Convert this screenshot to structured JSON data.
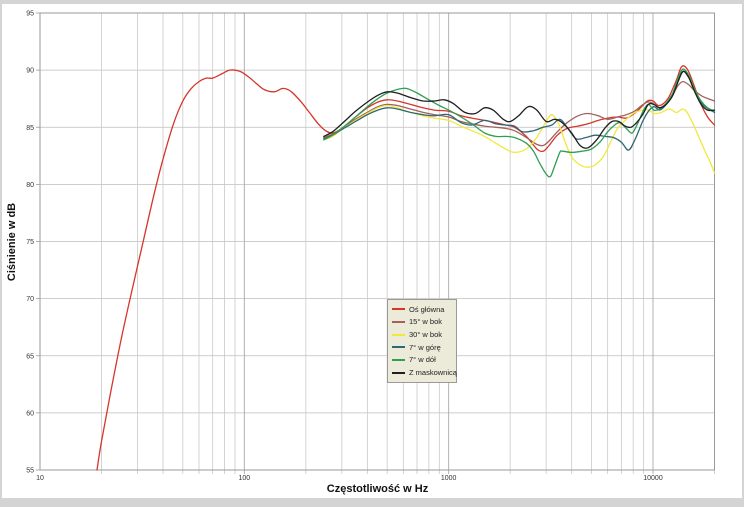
{
  "page": {
    "outer_background": "#d4d4d4",
    "chart_background": "#ffffff"
  },
  "chart_data": {
    "type": "line",
    "title": "",
    "xlabel": "Częstotliwość w Hz",
    "ylabel": "Ciśnienie w dB",
    "x_scale": "log",
    "xlim": [
      10,
      20000
    ],
    "ylim": [
      55,
      95
    ],
    "y_ticks": [
      55,
      60,
      65,
      70,
      75,
      80,
      85,
      90,
      95
    ],
    "x_major_ticks": [
      10,
      100,
      1000,
      10000
    ],
    "x_tick_labels": [
      "10",
      "100",
      "1000",
      "10000"
    ],
    "grid": true,
    "legend_position": "center",
    "colors": {
      "frame": "#9a9a9a",
      "grid_h": "#bdbdbd",
      "grid_v_minor": "#c9c9c9",
      "grid_v_major": "#aaaaaa",
      "tick_text": "#333333"
    },
    "series": [
      {
        "name": "Oś główna",
        "color": "#d6352b",
        "points": [
          [
            19,
            55
          ],
          [
            20,
            57.5
          ],
          [
            22,
            61.5
          ],
          [
            25,
            66.5
          ],
          [
            28,
            70.5
          ],
          [
            32,
            75
          ],
          [
            36,
            79
          ],
          [
            40,
            82.2
          ],
          [
            45,
            85.3
          ],
          [
            50,
            87.3
          ],
          [
            55,
            88.4
          ],
          [
            60,
            89.0
          ],
          [
            65,
            89.3
          ],
          [
            70,
            89.3
          ],
          [
            78,
            89.7
          ],
          [
            85,
            90.0
          ],
          [
            95,
            89.9
          ],
          [
            105,
            89.4
          ],
          [
            115,
            88.8
          ],
          [
            125,
            88.3
          ],
          [
            140,
            88.1
          ],
          [
            155,
            88.4
          ],
          [
            170,
            88.1
          ],
          [
            190,
            87.2
          ],
          [
            210,
            86.2
          ],
          [
            230,
            85.3
          ],
          [
            250,
            84.7
          ],
          [
            270,
            84.5
          ],
          [
            300,
            84.9
          ],
          [
            350,
            85.9
          ],
          [
            400,
            86.7
          ],
          [
            450,
            87.2
          ],
          [
            500,
            87.4
          ],
          [
            560,
            87.3
          ],
          [
            650,
            87.0
          ],
          [
            750,
            86.7
          ],
          [
            850,
            86.5
          ],
          [
            1000,
            86.4
          ],
          [
            1150,
            86.0
          ],
          [
            1300,
            85.8
          ],
          [
            1500,
            85.6
          ],
          [
            1700,
            85.4
          ],
          [
            1900,
            85.2
          ],
          [
            2100,
            85.0
          ],
          [
            2400,
            84.2
          ],
          [
            2700,
            83.1
          ],
          [
            2900,
            82.9
          ],
          [
            3100,
            83.4
          ],
          [
            3400,
            84.3
          ],
          [
            3800,
            84.9
          ],
          [
            4300,
            85.1
          ],
          [
            4800,
            85.3
          ],
          [
            5400,
            85.6
          ],
          [
            6000,
            85.8
          ],
          [
            6700,
            85.9
          ],
          [
            7400,
            85.8
          ],
          [
            8100,
            86.2
          ],
          [
            8800,
            86.8
          ],
          [
            9400,
            87.3
          ],
          [
            10000,
            87.3
          ],
          [
            10600,
            86.9
          ],
          [
            11300,
            87.1
          ],
          [
            12000,
            87.7
          ],
          [
            13000,
            89.1
          ],
          [
            13800,
            90.3
          ],
          [
            14700,
            90.1
          ],
          [
            15700,
            88.9
          ],
          [
            17000,
            87.2
          ],
          [
            18500,
            85.9
          ],
          [
            20000,
            85.2
          ]
        ]
      },
      {
        "name": "15° w bok",
        "color": "#a2615b",
        "points": [
          [
            245,
            84.1
          ],
          [
            270,
            84.4
          ],
          [
            300,
            84.9
          ],
          [
            350,
            85.7
          ],
          [
            400,
            86.3
          ],
          [
            450,
            86.8
          ],
          [
            500,
            87.0
          ],
          [
            560,
            86.9
          ],
          [
            650,
            86.6
          ],
          [
            750,
            86.3
          ],
          [
            850,
            86.1
          ],
          [
            1000,
            85.9
          ],
          [
            1150,
            85.5
          ],
          [
            1300,
            85.3
          ],
          [
            1500,
            85.1
          ],
          [
            1700,
            85.0
          ],
          [
            1900,
            84.9
          ],
          [
            2100,
            84.7
          ],
          [
            2400,
            84.1
          ],
          [
            2700,
            83.5
          ],
          [
            2900,
            83.4
          ],
          [
            3100,
            83.8
          ],
          [
            3400,
            84.6
          ],
          [
            3800,
            85.4
          ],
          [
            4300,
            86.0
          ],
          [
            4800,
            86.2
          ],
          [
            5400,
            86.0
          ],
          [
            6000,
            85.7
          ],
          [
            6700,
            85.9
          ],
          [
            7400,
            86.1
          ],
          [
            8100,
            86.4
          ],
          [
            8800,
            86.9
          ],
          [
            9400,
            87.2
          ],
          [
            10000,
            87.1
          ],
          [
            10700,
            86.7
          ],
          [
            11500,
            87.0
          ],
          [
            12300,
            87.6
          ],
          [
            13200,
            88.6
          ],
          [
            14000,
            89.0
          ],
          [
            15000,
            88.7
          ],
          [
            16000,
            88.2
          ],
          [
            17500,
            87.7
          ],
          [
            20000,
            87.3
          ]
        ]
      },
      {
        "name": "30° w bok",
        "color": "#f0e93c",
        "points": [
          [
            245,
            83.9
          ],
          [
            270,
            84.2
          ],
          [
            300,
            84.8
          ],
          [
            350,
            85.6
          ],
          [
            400,
            86.2
          ],
          [
            450,
            86.7
          ],
          [
            500,
            86.9
          ],
          [
            560,
            86.7
          ],
          [
            650,
            86.3
          ],
          [
            750,
            86.0
          ],
          [
            850,
            85.8
          ],
          [
            1000,
            85.6
          ],
          [
            1150,
            85.1
          ],
          [
            1300,
            84.7
          ],
          [
            1500,
            84.2
          ],
          [
            1700,
            83.6
          ],
          [
            1900,
            83.1
          ],
          [
            2100,
            82.8
          ],
          [
            2400,
            83.1
          ],
          [
            2700,
            84.1
          ],
          [
            3000,
            85.5
          ],
          [
            3200,
            86.1
          ],
          [
            3450,
            85.3
          ],
          [
            3700,
            83.8
          ],
          [
            4000,
            82.4
          ],
          [
            4400,
            81.7
          ],
          [
            4800,
            81.5
          ],
          [
            5200,
            81.7
          ],
          [
            5700,
            82.4
          ],
          [
            6200,
            83.7
          ],
          [
            6700,
            84.9
          ],
          [
            7300,
            85.6
          ],
          [
            8000,
            86.2
          ],
          [
            8800,
            86.5
          ],
          [
            9500,
            86.5
          ],
          [
            10200,
            86.2
          ],
          [
            11000,
            86.3
          ],
          [
            12000,
            86.6
          ],
          [
            13000,
            86.3
          ],
          [
            14000,
            86.6
          ],
          [
            14800,
            86.2
          ],
          [
            15800,
            85.2
          ],
          [
            17000,
            83.9
          ],
          [
            18200,
            82.7
          ],
          [
            19200,
            81.8
          ],
          [
            20000,
            81.0
          ]
        ]
      },
      {
        "name": "7° w górę",
        "color": "#2e6877",
        "points": [
          [
            245,
            84.0
          ],
          [
            270,
            84.3
          ],
          [
            300,
            84.8
          ],
          [
            350,
            85.5
          ],
          [
            400,
            86.1
          ],
          [
            450,
            86.5
          ],
          [
            500,
            86.7
          ],
          [
            560,
            86.6
          ],
          [
            650,
            86.3
          ],
          [
            750,
            86.1
          ],
          [
            850,
            86.0
          ],
          [
            1000,
            86.1
          ],
          [
            1150,
            85.4
          ],
          [
            1300,
            85.2
          ],
          [
            1500,
            85.6
          ],
          [
            1700,
            85.3
          ],
          [
            1900,
            85.2
          ],
          [
            2100,
            85.1
          ],
          [
            2300,
            84.6
          ],
          [
            2600,
            84.7
          ],
          [
            2900,
            85.0
          ],
          [
            3200,
            85.2
          ],
          [
            3500,
            85.7
          ],
          [
            3800,
            85.0
          ],
          [
            4200,
            84.0
          ],
          [
            4700,
            84.1
          ],
          [
            5200,
            84.3
          ],
          [
            5800,
            84.2
          ],
          [
            6400,
            84.1
          ],
          [
            7000,
            83.7
          ],
          [
            7600,
            83.0
          ],
          [
            8200,
            84.0
          ],
          [
            8900,
            85.5
          ],
          [
            9500,
            86.4
          ],
          [
            10100,
            86.8
          ],
          [
            10800,
            86.5
          ],
          [
            11600,
            87.0
          ],
          [
            12500,
            87.9
          ],
          [
            13400,
            89.3
          ],
          [
            14100,
            89.9
          ],
          [
            15000,
            89.4
          ],
          [
            16000,
            88.2
          ],
          [
            17500,
            87.0
          ],
          [
            20000,
            86.3
          ]
        ]
      },
      {
        "name": "7° w dół",
        "color": "#2f9e53",
        "points": [
          [
            245,
            83.9
          ],
          [
            270,
            84.3
          ],
          [
            300,
            84.9
          ],
          [
            350,
            85.9
          ],
          [
            400,
            86.8
          ],
          [
            450,
            87.5
          ],
          [
            500,
            88.0
          ],
          [
            560,
            88.3
          ],
          [
            620,
            88.4
          ],
          [
            700,
            88.0
          ],
          [
            800,
            87.4
          ],
          [
            900,
            86.9
          ],
          [
            1000,
            86.5
          ],
          [
            1150,
            85.9
          ],
          [
            1300,
            85.3
          ],
          [
            1500,
            84.5
          ],
          [
            1700,
            84.2
          ],
          [
            1900,
            84.2
          ],
          [
            2100,
            84.1
          ],
          [
            2400,
            83.6
          ],
          [
            2600,
            82.9
          ],
          [
            2800,
            81.8
          ],
          [
            3000,
            80.9
          ],
          [
            3150,
            80.7
          ],
          [
            3300,
            81.6
          ],
          [
            3500,
            82.8
          ],
          [
            3600,
            82.9
          ],
          [
            4000,
            82.8
          ],
          [
            4500,
            82.9
          ],
          [
            5000,
            83.1
          ],
          [
            5500,
            83.7
          ],
          [
            6000,
            84.6
          ],
          [
            6500,
            85.2
          ],
          [
            6900,
            85.4
          ],
          [
            7400,
            84.9
          ],
          [
            7900,
            84.5
          ],
          [
            8400,
            85.3
          ],
          [
            9000,
            86.5
          ],
          [
            9500,
            87.0
          ],
          [
            10100,
            86.5
          ],
          [
            10800,
            86.6
          ],
          [
            11600,
            87.1
          ],
          [
            12500,
            88.0
          ],
          [
            13400,
            89.5
          ],
          [
            14100,
            90.1
          ],
          [
            15000,
            89.5
          ],
          [
            16000,
            88.3
          ],
          [
            17200,
            87.3
          ],
          [
            18500,
            86.7
          ],
          [
            20000,
            86.4
          ]
        ]
      },
      {
        "name": "Z maskownicą",
        "color": "#1f1f1f",
        "points": [
          [
            245,
            84.2
          ],
          [
            270,
            84.6
          ],
          [
            300,
            85.3
          ],
          [
            350,
            86.4
          ],
          [
            400,
            87.2
          ],
          [
            450,
            87.8
          ],
          [
            500,
            88.1
          ],
          [
            560,
            88.0
          ],
          [
            650,
            87.6
          ],
          [
            750,
            87.3
          ],
          [
            850,
            87.3
          ],
          [
            950,
            87.4
          ],
          [
            1050,
            87.1
          ],
          [
            1200,
            86.3
          ],
          [
            1350,
            86.2
          ],
          [
            1500,
            86.7
          ],
          [
            1650,
            86.5
          ],
          [
            1850,
            85.7
          ],
          [
            2000,
            85.5
          ],
          [
            2200,
            86.0
          ],
          [
            2450,
            86.8
          ],
          [
            2700,
            86.5
          ],
          [
            3000,
            85.5
          ],
          [
            3300,
            85.7
          ],
          [
            3600,
            85.4
          ],
          [
            4000,
            84.5
          ],
          [
            4400,
            83.4
          ],
          [
            4800,
            83.2
          ],
          [
            5300,
            83.9
          ],
          [
            5800,
            84.9
          ],
          [
            6300,
            85.5
          ],
          [
            6800,
            85.5
          ],
          [
            7300,
            85.1
          ],
          [
            7800,
            85.0
          ],
          [
            8300,
            85.4
          ],
          [
            8900,
            86.1
          ],
          [
            9500,
            87.0
          ],
          [
            10100,
            87.0
          ],
          [
            10800,
            86.7
          ],
          [
            11600,
            87.0
          ],
          [
            12500,
            87.8
          ],
          [
            13400,
            89.2
          ],
          [
            14100,
            89.9
          ],
          [
            15000,
            89.3
          ],
          [
            16000,
            88.1
          ],
          [
            17200,
            87.0
          ],
          [
            18500,
            86.5
          ],
          [
            20000,
            86.5
          ]
        ]
      }
    ]
  }
}
